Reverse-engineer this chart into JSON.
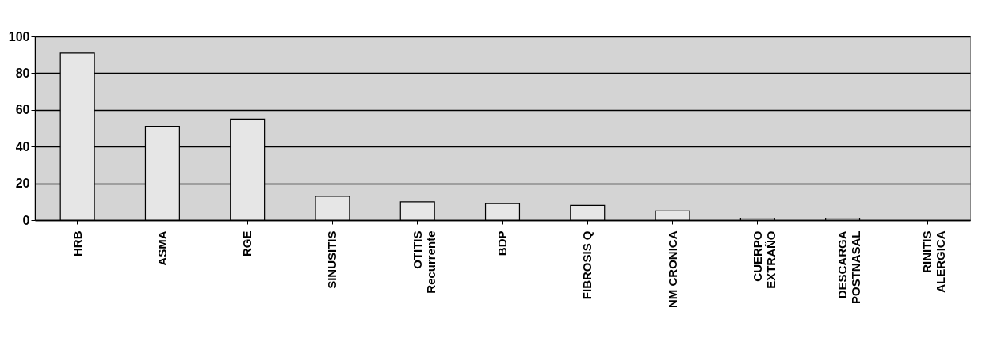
{
  "chart_data": {
    "type": "bar",
    "categories": [
      "HRB",
      "ASMA",
      "RGE",
      "SINUSITIS",
      "OTITIS\nRecurrente",
      "BDP",
      "FIBROSIS Q",
      "NM CRONICA",
      "CUERPO\nEXTRAÑO",
      "DESCARGA\nPOSTNASAL",
      "RINITIS\nALERGICA"
    ],
    "values": [
      91,
      51,
      55,
      13,
      10,
      9,
      8,
      5,
      1,
      1,
      0
    ],
    "color": "#e6e6e6",
    "ylim": [
      0,
      100
    ],
    "yticks": [
      0,
      20,
      40,
      60,
      80,
      100
    ],
    "grid": "y"
  }
}
